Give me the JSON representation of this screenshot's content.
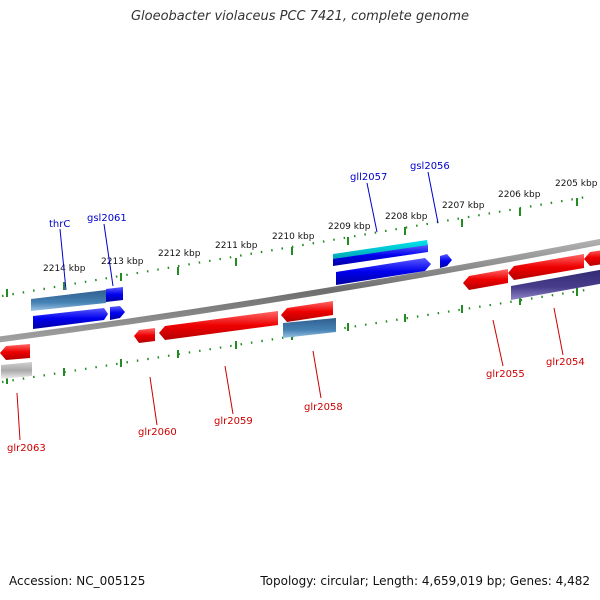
{
  "title": "Gloeobacter violaceus PCC 7421, complete genome",
  "footer": {
    "accession": "Accession: NC_005125",
    "stats": "Topology: circular; Length: 4,659,019 bp; Genes: 4,482"
  },
  "colors": {
    "backbone": "#808080",
    "ticks": "#228B22",
    "plus_label": "#0000CC",
    "minus_label": "#CC0000",
    "gene_red": "#EE0000",
    "gene_blue": "#0000EE",
    "gene_steel": "#4682B4",
    "gene_cyan": "#00CED1",
    "gene_slate": "#483D8B",
    "gene_gray": "#A9A9A9"
  },
  "ruler_ticks": [
    "2214 kbp",
    "2213 kbp",
    "2212 kbp",
    "2211 kbp",
    "2210 kbp",
    "2209 kbp",
    "2208 kbp",
    "2207 kbp",
    "2206 kbp",
    "2205 kbp"
  ],
  "genes": {
    "thrC": "thrC",
    "gsl2061": "gsl2061",
    "gll2057": "gll2057",
    "gsl2056": "gsl2056",
    "glr2063": "glr2063",
    "glr2060": "glr2060",
    "glr2059": "glr2059",
    "glr2058": "glr2058",
    "glr2055": "glr2055",
    "glr2054": "glr2054"
  }
}
